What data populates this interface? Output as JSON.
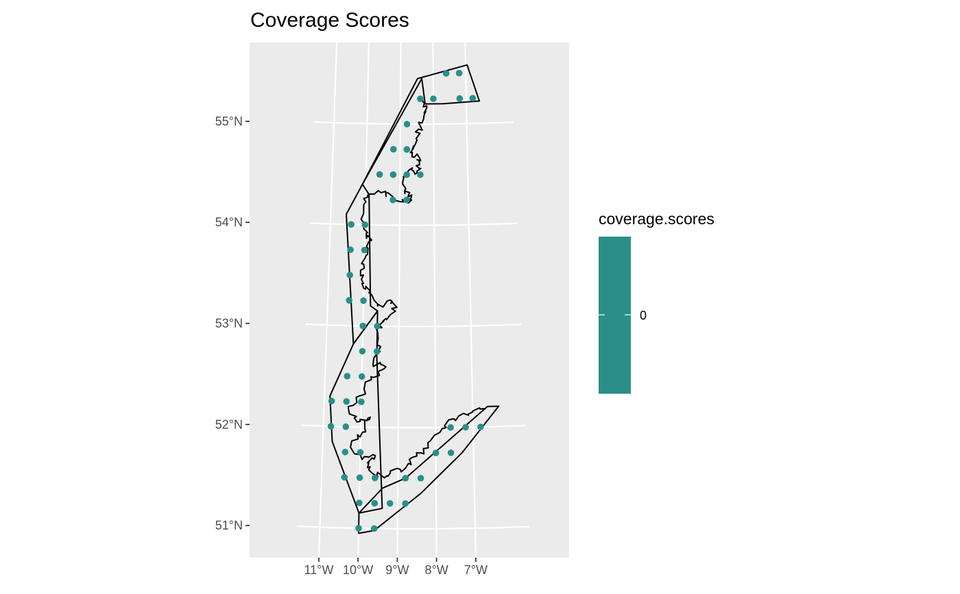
{
  "chart_data": {
    "type": "scatter",
    "subtype": "map",
    "title": "Coverage Scores",
    "xlabel": "",
    "ylabel": "",
    "projection": "conic",
    "x_ticks": [
      {
        "value": -11,
        "label": "11°W"
      },
      {
        "value": -10,
        "label": "10°W"
      },
      {
        "value": -9,
        "label": "9°W"
      },
      {
        "value": -8,
        "label": "8°W"
      },
      {
        "value": -7,
        "label": "7°W"
      }
    ],
    "y_ticks": [
      {
        "value": 51,
        "label": "51°N"
      },
      {
        "value": 52,
        "label": "52°N"
      },
      {
        "value": 53,
        "label": "53°N"
      },
      {
        "value": 54,
        "label": "54°N"
      },
      {
        "value": 55,
        "label": "55°N"
      }
    ],
    "lon_range": [
      -11.2,
      -6.0
    ],
    "lat_range": [
      50.85,
      55.8
    ],
    "grid": true,
    "point_color": "#2a8f89",
    "panel_background": "#ebebeb",
    "gridline_color": "#ffffff",
    "outline_color": "#000000",
    "legend": {
      "title": "coverage.scores",
      "position": "right",
      "labels": [
        "0"
      ],
      "color": "#2a8f89"
    },
    "points": [
      {
        "lon": -7.6,
        "lat": 55.5
      },
      {
        "lon": -7.2,
        "lat": 55.5
      },
      {
        "lon": -8.4,
        "lat": 55.25
      },
      {
        "lon": -8.0,
        "lat": 55.25
      },
      {
        "lon": -7.2,
        "lat": 55.25
      },
      {
        "lon": -6.8,
        "lat": 55.25
      },
      {
        "lon": -8.8,
        "lat": 55.0
      },
      {
        "lon": -9.2,
        "lat": 54.75
      },
      {
        "lon": -8.8,
        "lat": 54.75
      },
      {
        "lon": -9.6,
        "lat": 54.5
      },
      {
        "lon": -9.2,
        "lat": 54.5
      },
      {
        "lon": -8.8,
        "lat": 54.5
      },
      {
        "lon": -8.4,
        "lat": 54.5
      },
      {
        "lon": -9.2,
        "lat": 54.25
      },
      {
        "lon": -8.8,
        "lat": 54.25
      },
      {
        "lon": -10.4,
        "lat": 54.0
      },
      {
        "lon": -10.0,
        "lat": 54.0
      },
      {
        "lon": -10.4,
        "lat": 53.75
      },
      {
        "lon": -10.0,
        "lat": 53.75
      },
      {
        "lon": -10.4,
        "lat": 53.5
      },
      {
        "lon": -10.4,
        "lat": 53.25
      },
      {
        "lon": -10.0,
        "lat": 53.25
      },
      {
        "lon": -10.0,
        "lat": 53.0
      },
      {
        "lon": -9.6,
        "lat": 53.0
      },
      {
        "lon": -10.0,
        "lat": 52.75
      },
      {
        "lon": -9.6,
        "lat": 52.75
      },
      {
        "lon": -10.4,
        "lat": 52.5
      },
      {
        "lon": -10.0,
        "lat": 52.5
      },
      {
        "lon": -10.8,
        "lat": 52.25
      },
      {
        "lon": -10.4,
        "lat": 52.25
      },
      {
        "lon": -10.0,
        "lat": 52.25
      },
      {
        "lon": -10.8,
        "lat": 52.0
      },
      {
        "lon": -10.4,
        "lat": 52.0
      },
      {
        "lon": -7.6,
        "lat": 52.0
      },
      {
        "lon": -7.2,
        "lat": 52.0
      },
      {
        "lon": -6.8,
        "lat": 52.0
      },
      {
        "lon": -10.4,
        "lat": 51.75
      },
      {
        "lon": -10.0,
        "lat": 51.75
      },
      {
        "lon": -8.0,
        "lat": 51.75
      },
      {
        "lon": -7.6,
        "lat": 51.75
      },
      {
        "lon": -10.4,
        "lat": 51.5
      },
      {
        "lon": -10.0,
        "lat": 51.5
      },
      {
        "lon": -9.6,
        "lat": 51.5
      },
      {
        "lon": -8.8,
        "lat": 51.5
      },
      {
        "lon": -8.4,
        "lat": 51.5
      },
      {
        "lon": -10.0,
        "lat": 51.25
      },
      {
        "lon": -9.6,
        "lat": 51.25
      },
      {
        "lon": -9.2,
        "lat": 51.25
      },
      {
        "lon": -8.8,
        "lat": 51.25
      },
      {
        "lon": -10.0,
        "lat": 51.0
      },
      {
        "lon": -9.6,
        "lat": 51.0
      }
    ],
    "regions": [
      {
        "name": "north",
        "lonlat": [
          [
            -10.1,
            54.4
          ],
          [
            -8.48,
            55.45
          ],
          [
            -6.95,
            55.58
          ],
          [
            -6.6,
            55.22
          ],
          [
            -7.7,
            55.2
          ],
          [
            -8.25,
            55.2
          ],
          [
            -8.35,
            55.45
          ]
        ]
      },
      {
        "name": "west",
        "lonlat": [
          [
            -10.55,
            54.1
          ],
          [
            -10.1,
            54.4
          ],
          [
            -9.9,
            54.3
          ],
          [
            -9.8,
            53.2
          ],
          [
            -9.6,
            53.15
          ],
          [
            -10.25,
            52.82
          ]
        ]
      },
      {
        "name": "southwest",
        "lonlat": [
          [
            -10.25,
            52.82
          ],
          [
            -10.85,
            52.3
          ],
          [
            -10.75,
            51.85
          ],
          [
            -10.0,
            51.15
          ],
          [
            -9.4,
            51.2
          ],
          [
            -9.6,
            52.7
          ],
          [
            -9.6,
            53.15
          ]
        ]
      },
      {
        "name": "south",
        "lonlat": [
          [
            -10.0,
            51.15
          ],
          [
            -10.0,
            50.95
          ],
          [
            -9.6,
            50.98
          ],
          [
            -8.4,
            51.35
          ],
          [
            -7.3,
            51.75
          ],
          [
            -6.3,
            52.2
          ],
          [
            -6.6,
            52.2
          ],
          [
            -8.8,
            51.5
          ],
          [
            -9.4,
            51.4
          ]
        ]
      }
    ],
    "coastline_lonlat": [
      [
        -8.35,
        55.25
      ],
      [
        -8.2,
        55.18
      ],
      [
        -8.3,
        55.05
      ],
      [
        -8.45,
        54.95
      ],
      [
        -8.55,
        54.8
      ],
      [
        -8.65,
        54.72
      ],
      [
        -8.45,
        54.68
      ],
      [
        -8.42,
        54.6
      ],
      [
        -8.5,
        54.52
      ],
      [
        -8.72,
        54.55
      ],
      [
        -8.9,
        54.48
      ],
      [
        -8.85,
        54.35
      ],
      [
        -8.65,
        54.3
      ],
      [
        -8.75,
        54.22
      ],
      [
        -9.2,
        54.28
      ],
      [
        -9.55,
        54.32
      ],
      [
        -9.95,
        54.28
      ],
      [
        -10.05,
        54.15
      ],
      [
        -10.0,
        53.95
      ],
      [
        -9.8,
        53.85
      ],
      [
        -9.95,
        53.7
      ],
      [
        -10.1,
        53.55
      ],
      [
        -10.05,
        53.42
      ],
      [
        -9.85,
        53.33
      ],
      [
        -9.6,
        53.2
      ],
      [
        -9.2,
        53.25
      ],
      [
        -9.1,
        53.15
      ],
      [
        -9.45,
        53.05
      ],
      [
        -9.6,
        52.95
      ],
      [
        -9.5,
        52.8
      ],
      [
        -9.7,
        52.62
      ],
      [
        -9.35,
        52.6
      ],
      [
        -9.75,
        52.5
      ],
      [
        -9.95,
        52.32
      ],
      [
        -10.35,
        52.2
      ],
      [
        -10.1,
        52.05
      ],
      [
        -9.75,
        52.1
      ],
      [
        -9.95,
        51.95
      ],
      [
        -10.25,
        51.82
      ],
      [
        -9.95,
        51.68
      ],
      [
        -9.6,
        51.72
      ],
      [
        -9.8,
        51.6
      ],
      [
        -9.55,
        51.52
      ],
      [
        -9.2,
        51.55
      ],
      [
        -8.8,
        51.6
      ],
      [
        -8.5,
        51.72
      ],
      [
        -8.2,
        51.8
      ],
      [
        -7.9,
        51.95
      ],
      [
        -7.7,
        52.05
      ],
      [
        -7.4,
        52.1
      ],
      [
        -7.0,
        52.15
      ],
      [
        -6.65,
        52.18
      ]
    ]
  }
}
